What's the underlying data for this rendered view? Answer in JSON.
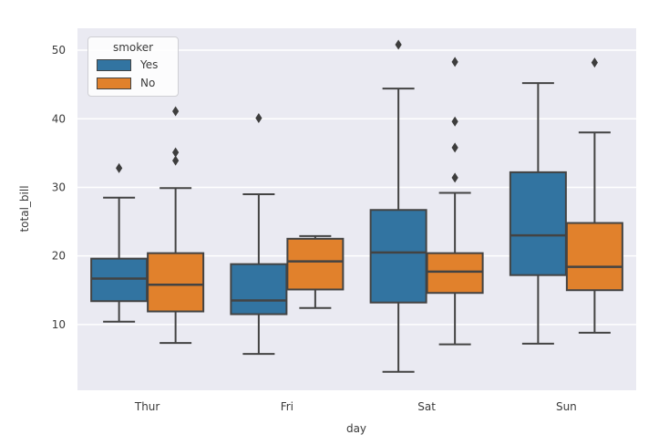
{
  "figure": {
    "background": "#ffffff",
    "plot_background": "#eaeaf2",
    "grid_color": "#ffffff",
    "box_edge_color": "#434343",
    "outlier_color": "#3d3d3d",
    "text_color": "#3b3b3b"
  },
  "chart_data": {
    "type": "grouped_boxplot",
    "title": "",
    "xlabel": "day",
    "ylabel": "total_bill",
    "categories": [
      "Thur",
      "Fri",
      "Sat",
      "Sun"
    ],
    "yticks": [
      10,
      20,
      30,
      40,
      50
    ],
    "ylim": [
      0.4,
      53.2
    ],
    "grid": true,
    "legend": {
      "title": "smoker",
      "position": "upper left"
    },
    "series": [
      {
        "name": "Yes",
        "color": "#3274a1",
        "boxes": [
          {
            "category": "Thur",
            "whislo": 10.4,
            "q1": 13.4,
            "med": 16.7,
            "q3": 19.6,
            "whishi": 28.5,
            "outliers": [
              32.8
            ]
          },
          {
            "category": "Fri",
            "whislo": 5.7,
            "q1": 11.5,
            "med": 13.5,
            "q3": 18.8,
            "whishi": 29.0,
            "outliers": [
              40.1
            ]
          },
          {
            "category": "Sat",
            "whislo": 3.1,
            "q1": 13.2,
            "med": 20.5,
            "q3": 26.7,
            "whishi": 44.4,
            "outliers": [
              50.8
            ]
          },
          {
            "category": "Sun",
            "whislo": 7.2,
            "q1": 17.2,
            "med": 23.0,
            "q3": 32.2,
            "whishi": 45.2,
            "outliers": []
          }
        ]
      },
      {
        "name": "No",
        "color": "#e1812c",
        "boxes": [
          {
            "category": "Thur",
            "whislo": 7.3,
            "q1": 11.9,
            "med": 15.8,
            "q3": 20.4,
            "whishi": 29.9,
            "outliers": [
              33.9,
              35.1,
              41.1
            ]
          },
          {
            "category": "Fri",
            "whislo": 12.4,
            "q1": 15.1,
            "med": 19.2,
            "q3": 22.5,
            "whishi": 22.9,
            "outliers": []
          },
          {
            "category": "Sat",
            "whislo": 7.1,
            "q1": 14.6,
            "med": 17.7,
            "q3": 20.4,
            "whishi": 29.2,
            "outliers": [
              31.4,
              35.8,
              39.6,
              48.3
            ]
          },
          {
            "category": "Sun",
            "whislo": 8.8,
            "q1": 15.0,
            "med": 18.4,
            "q3": 24.8,
            "whishi": 38.0,
            "outliers": [
              48.2
            ]
          }
        ]
      }
    ]
  }
}
